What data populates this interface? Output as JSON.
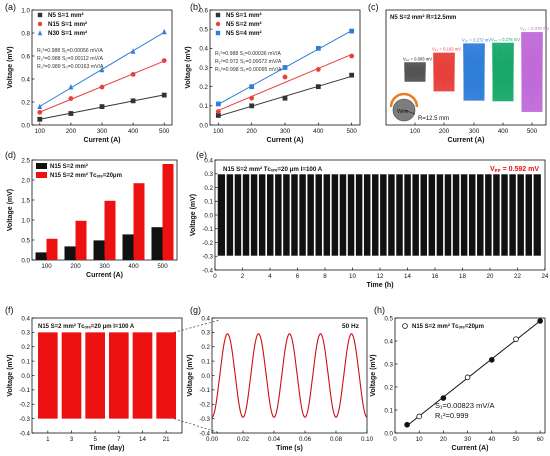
{
  "chart_data": [
    {
      "panel": "(a)",
      "type": "scatter",
      "xlabel": "Current (A)",
      "ylabel": "Voltage (mV)",
      "xlim": [
        75,
        525
      ],
      "ylim": [
        0,
        1.0
      ],
      "xticks": [
        100,
        200,
        300,
        400,
        500
      ],
      "yticks": [
        0.0,
        0.2,
        0.4,
        0.6,
        0.8,
        1.0
      ],
      "legend": "top-left",
      "series": [
        {
          "name": "N5 S=1 mm²",
          "color": "#333333",
          "marker": "square",
          "x": [
            100,
            200,
            300,
            400,
            500
          ],
          "y": [
            0.05,
            0.1,
            0.16,
            0.21,
            0.26
          ]
        },
        {
          "name": "N15 S=1 mm²",
          "color": "#e8413c",
          "marker": "circle",
          "x": [
            100,
            200,
            300,
            400,
            500
          ],
          "y": [
            0.11,
            0.23,
            0.33,
            0.44,
            0.56
          ]
        },
        {
          "name": "N30 S=1 mm²",
          "color": "#2f7ed8",
          "marker": "triangle",
          "x": [
            100,
            200,
            300,
            400,
            500
          ],
          "y": [
            0.16,
            0.33,
            0.48,
            0.64,
            0.81
          ]
        }
      ],
      "annotations": [
        {
          "r": "R₁²=0.988",
          "s": "S₁=0.00056 mV/A",
          "color": "#333333"
        },
        {
          "r": "R₂²=0.988",
          "s": "S₂=0.00112 mV/A",
          "color": "#333333"
        },
        {
          "r": "R₃²=0.989",
          "s": "S₃=0.00163 mV/A",
          "color": "#333333"
        }
      ]
    },
    {
      "panel": "(b)",
      "type": "scatter",
      "xlabel": "Current (A)",
      "ylabel": "Voltage (mV)",
      "xlim": [
        75,
        525
      ],
      "ylim": [
        0,
        0.6
      ],
      "xticks": [
        100,
        200,
        300,
        400,
        500
      ],
      "yticks": [
        0.0,
        0.1,
        0.2,
        0.3,
        0.4,
        0.5,
        0.6
      ],
      "legend": "top-left",
      "series": [
        {
          "name": "N5 S=1 mm²",
          "color": "#333333",
          "marker": "square",
          "x": [
            100,
            200,
            300,
            400,
            500
          ],
          "y": [
            0.05,
            0.1,
            0.14,
            0.2,
            0.26
          ]
        },
        {
          "name": "N5 S=2 mm²",
          "color": "#e8413c",
          "marker": "circle",
          "x": [
            100,
            200,
            300,
            400,
            500
          ],
          "y": [
            0.07,
            0.14,
            0.25,
            0.29,
            0.36
          ]
        },
        {
          "name": "N5 S=4 mm²",
          "color": "#2f7ed8",
          "marker": "square",
          "x": [
            100,
            200,
            300,
            400,
            500
          ],
          "y": [
            0.11,
            0.2,
            0.3,
            0.4,
            0.49
          ]
        }
      ],
      "annotations": [
        {
          "r": "R₁²=0.988",
          "s": "S₁=0.00036 mV/A",
          "color": "#333333"
        },
        {
          "r": "R₂²=0.972",
          "s": "S₂=0.00072 mV/A",
          "color": "#333333"
        },
        {
          "r": "R₃²=0.998",
          "s": "S₃=0.00095 mV/A",
          "color": "#333333"
        }
      ]
    },
    {
      "panel": "(c)",
      "type": "area",
      "title": "N5 S=2 mm² R=12.5mm",
      "xlabel": "Current (A)",
      "xticks": [
        100,
        200,
        300,
        400,
        500
      ],
      "bursts": [
        {
          "x": 100,
          "vpp_label": "Vₚₚ = 0.093 mV",
          "amp": 0.046,
          "color": "#555555",
          "label_color": "#ffffff"
        },
        {
          "x": 200,
          "vpp_label": "Vₚₚ = 0.183 mV",
          "amp": 0.092,
          "color": "#e8413c",
          "label_color": "#e8413c"
        },
        {
          "x": 300,
          "vpp_label": "Vₚₚ = 0.272 mV",
          "amp": 0.136,
          "color": "#2f7ed8",
          "label_color": "#2f7ed8"
        },
        {
          "x": 400,
          "vpp_label": "Vₚₚ = 0.278 mV",
          "amp": 0.139,
          "color": "#1aa86a",
          "label_color": "#1aa86a"
        },
        {
          "x": 500,
          "vpp_label": "Vₚₚ = 0.379 mV",
          "amp": 0.19,
          "color": "#c06bd8",
          "label_color": "#c06bd8"
        }
      ],
      "inset": {
        "wire_label": "Wire",
        "radius_label": "R=12.5 mm"
      }
    },
    {
      "panel": "(d)",
      "type": "bar",
      "xlabel": "Current (A)",
      "ylabel": "Voltage (mV)",
      "categories": [
        "100",
        "200",
        "300",
        "400",
        "500"
      ],
      "ylim": [
        0,
        2.5
      ],
      "yticks": [
        0.0,
        0.5,
        1.0,
        1.5,
        2.0,
        2.5
      ],
      "legend": "top-left",
      "series": [
        {
          "name": "N15 S=2 mm²",
          "color": "#111111",
          "values": [
            0.19,
            0.34,
            0.49,
            0.64,
            0.82
          ]
        },
        {
          "name": "N15 S=2 mm² Tᴄₒᵣₑ=20μm",
          "color": "#ee1111",
          "values": [
            0.53,
            0.98,
            1.48,
            1.92,
            2.4
          ]
        }
      ]
    },
    {
      "panel": "(e)",
      "type": "area",
      "title": "N15 S=2 mm² Tᴄₒᵣₑ=20 μm I=100 A",
      "vpp_label": "Vₚₚ = 0.592 mV",
      "xlabel": "Time (h)",
      "ylabel": "Voltage (mV)",
      "xlim": [
        0,
        24
      ],
      "ylim": [
        -0.4,
        0.4
      ],
      "xticks": [
        0,
        2,
        4,
        6,
        8,
        10,
        12,
        14,
        16,
        18,
        20,
        22,
        24
      ],
      "yticks": [
        -0.4,
        -0.3,
        -0.2,
        -0.1,
        0.0,
        0.1,
        0.2,
        0.3,
        0.4
      ],
      "amplitude": 0.296,
      "color": "#111111",
      "vpp_color": "#ee1111"
    },
    {
      "panel": "(f)",
      "type": "area",
      "title": "N15 S=2 mm² Tᴄₒᵣₑ=20 μm I=100 A",
      "xlabel": "Time (day)",
      "ylabel": "Voltage (mV)",
      "categories": [
        "1",
        "3",
        "5",
        "7",
        "14",
        "21"
      ],
      "ylim": [
        -0.4,
        0.4
      ],
      "yticks": [
        -0.4,
        -0.3,
        -0.2,
        -0.1,
        0.0,
        0.1,
        0.2,
        0.3,
        0.4
      ],
      "amplitude": 0.3,
      "color": "#ee1111"
    },
    {
      "panel": "(g)",
      "type": "line",
      "title": "50 Hz",
      "xlabel": "Time (s)",
      "ylabel": "Voltage (mV)",
      "xlim": [
        0.0,
        0.1
      ],
      "ylim": [
        -0.4,
        0.4
      ],
      "xticks": [
        0.0,
        0.02,
        0.04,
        0.06,
        0.08,
        0.1
      ],
      "yticks": [
        -0.4,
        -0.3,
        -0.2,
        -0.1,
        0.0,
        0.1,
        0.2,
        0.3,
        0.4
      ],
      "frequency_hz": 50,
      "amplitude": 0.29,
      "color": "#cc1111"
    },
    {
      "panel": "(h)",
      "type": "scatter",
      "xlabel": "Current (A)",
      "ylabel": "Voltage (mV)",
      "xlim": [
        0,
        62
      ],
      "ylim": [
        0,
        0.5
      ],
      "xticks": [
        0,
        10,
        20,
        30,
        40,
        50,
        60
      ],
      "yticks": [
        0.0,
        0.1,
        0.2,
        0.3,
        0.4,
        0.5
      ],
      "legend": "top-left",
      "series": [
        {
          "name": "N15 S=2 mm² Tᴄₒᵣₑ=20μm",
          "color": "#111111",
          "marker": "circle",
          "x": [
            5,
            10,
            20,
            30,
            40,
            50,
            60
          ],
          "y": [
            0.036,
            0.072,
            0.152,
            0.242,
            0.318,
            0.408,
            0.487
          ]
        }
      ],
      "annotations": [
        {
          "s": "S₁=0.00823 mV/A",
          "r": "R₁²=0.999"
        }
      ]
    }
  ]
}
